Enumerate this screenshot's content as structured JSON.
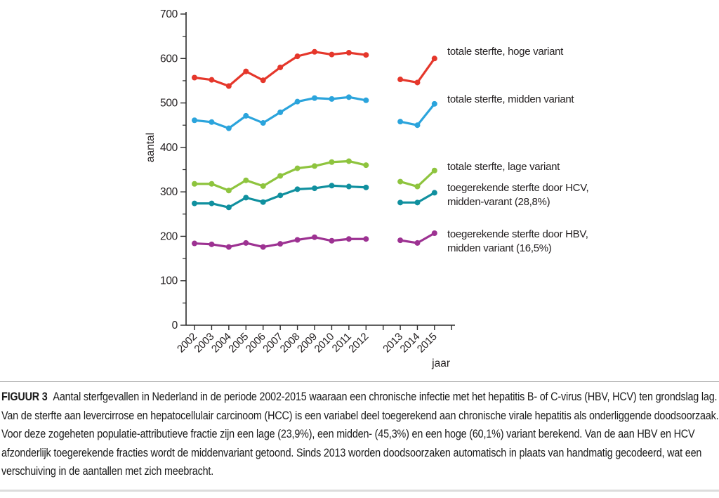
{
  "chart_data": {
    "type": "line",
    "title": "",
    "xlabel": "jaar",
    "ylabel": "aantal",
    "ylim": [
      0,
      700
    ],
    "yticks": [
      0,
      100,
      200,
      300,
      400,
      500,
      600,
      700
    ],
    "yticks_minor": [
      50,
      150,
      250,
      350,
      450,
      550,
      650
    ],
    "grid": "off",
    "legend_position": "right-of-lines",
    "categories": [
      "2002",
      "2003",
      "2004",
      "2005",
      "2006",
      "2007",
      "2008",
      "2009",
      "2010",
      "2011",
      "2012",
      "2013",
      "2014",
      "2015"
    ],
    "gap_after_index": 10,
    "gap_note": "axis break between 2012 and 2013 (method change in cause-of-death coding)",
    "series": [
      {
        "id": "hoge",
        "label_lines": [
          "totale sterfte, hoge variant"
        ],
        "color": "#e5372b",
        "values": [
          557,
          552,
          538,
          571,
          551,
          580,
          605,
          615,
          609,
          613,
          608,
          553,
          546,
          600
        ]
      },
      {
        "id": "midden",
        "label_lines": [
          "totale sterfte, midden variant"
        ],
        "color": "#2ba4dc",
        "values": [
          461,
          457,
          443,
          471,
          455,
          479,
          503,
          511,
          509,
          513,
          506,
          458,
          450,
          498
        ]
      },
      {
        "id": "lage",
        "label_lines": [
          "totale sterfte, lage variant"
        ],
        "color": "#8ec43e",
        "values": [
          318,
          318,
          303,
          326,
          313,
          336,
          353,
          358,
          367,
          369,
          360,
          323,
          312,
          348
        ]
      },
      {
        "id": "hcv",
        "label_lines": [
          "toegerekende sterfte door HCV,",
          "midden-varant (28,8%)"
        ],
        "color": "#10909f",
        "values": [
          274,
          274,
          265,
          287,
          277,
          292,
          306,
          308,
          314,
          312,
          310,
          276,
          276,
          298
        ]
      },
      {
        "id": "hbv",
        "label_lines": [
          "toegerekende sterfte door HBV,",
          "midden variant (16,5%)"
        ],
        "color": "#9d3292",
        "values": [
          184,
          182,
          176,
          185,
          176,
          183,
          192,
          198,
          190,
          194,
          194,
          191,
          185,
          207
        ]
      }
    ]
  },
  "colors": {
    "axis": "#2b2b2b",
    "text": "#231f20",
    "divider_top": "#9b9b9b",
    "divider_bottom": "#dcdcdc",
    "background": "#ffffff"
  },
  "caption": {
    "label": "FIGUUR 3",
    "lines": [
      "Aantal sterfgevallen in Nederland in de periode 2002-2015 waaraan een chronische infectie met het hepatitis B- of C-virus (HBV, HCV) ten grondslag lag.",
      "Van de sterfte aan levercirrose en hepatocellulair carcinoom (HCC) is een variabel deel toegerekend aan chronische virale hepatitis als onderliggende doodsoorzaak.",
      "Voor deze zogeheten populatie-attributieve fractie zijn een lage (23,9%), een midden- (45,3%) en een hoge (60,1%) variant berekend. Van de aan HBV en HCV",
      "afzonderlijk toegerekende fracties wordt de middenvariant getoond. Sinds 2013 worden doodsoorzaken automatisch in plaats van handmatig gecodeerd, wat een",
      "verschuiving in de aantallen met zich meebracht."
    ]
  }
}
